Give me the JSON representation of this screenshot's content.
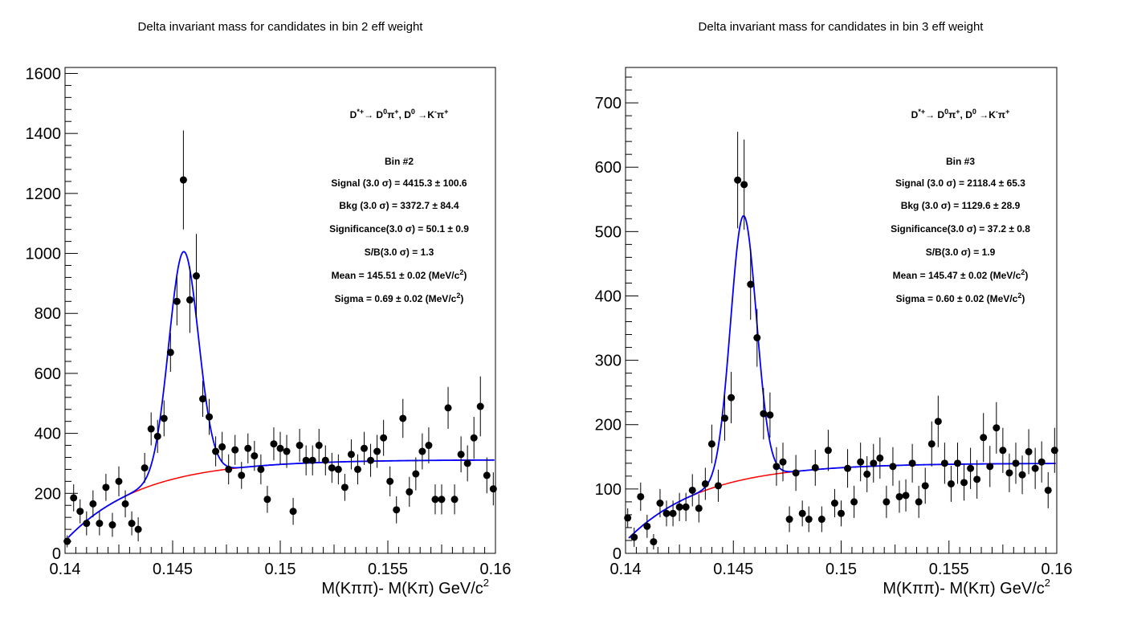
{
  "chart_data": [
    {
      "type": "scatter",
      "title": "Delta invariant mass for candidates in bin 2 eff weight",
      "xlabel": "M(Kππ)- M(Kπ) GeV/c",
      "xlabel_sup": "2",
      "xlim": [
        0.14,
        0.16
      ],
      "ylim": [
        0,
        1620
      ],
      "xticks": [
        "0.14",
        "0.145",
        "0.15",
        "0.155",
        "0.16"
      ],
      "xtick_values": [
        0.14,
        0.145,
        0.15,
        0.155,
        0.16
      ],
      "yticks": [
        "0",
        "200",
        "400",
        "600",
        "800",
        "1000",
        "1200",
        "1400",
        "1600"
      ],
      "ytick_values": [
        0,
        200,
        400,
        600,
        800,
        1000,
        1200,
        1400,
        1600
      ],
      "decay": {
        "text": "D",
        "sup1": "*+",
        "arrow": "→ D",
        "sup2": "0",
        "pi": "π",
        "sup3": "+",
        "comma": ", D",
        "sup4": "0",
        "arrow2": " →K",
        "sup5": "-",
        "pi2": "π",
        "sup6": "+"
      },
      "stats": [
        {
          "text": "Bin #2"
        },
        {
          "text": "Signal (3.0  σ) =  4415.3 ± 100.6"
        },
        {
          "text": "Bkg (3.0  σ) =  3372.7 ± 84.4"
        },
        {
          "text": "Significance(3.0  σ) =  50.1 ± 0.9"
        },
        {
          "text": "S/B(3.0  σ) =  1.3"
        },
        {
          "text": "Mean = 145.51 ± 0.02 (MeV/c",
          "sup": "2",
          "tail": ")"
        },
        {
          "text": "Sigma = 0.69 ± 0.02 (MeV/c",
          "sup": "2",
          "tail": ")"
        }
      ],
      "points": [
        [
          0.1401,
          40,
          20
        ],
        [
          0.1404,
          185,
          45
        ],
        [
          0.1407,
          140,
          40
        ],
        [
          0.141,
          100,
          40
        ],
        [
          0.1413,
          165,
          45
        ],
        [
          0.1416,
          100,
          40
        ],
        [
          0.1419,
          220,
          45
        ],
        [
          0.1422,
          95,
          40
        ],
        [
          0.1425,
          240,
          50
        ],
        [
          0.1428,
          165,
          45
        ],
        [
          0.1431,
          100,
          40
        ],
        [
          0.1434,
          80,
          40
        ],
        [
          0.1437,
          285,
          50
        ],
        [
          0.144,
          415,
          55
        ],
        [
          0.1443,
          390,
          55
        ],
        [
          0.1446,
          450,
          60
        ],
        [
          0.1449,
          670,
          65
        ],
        [
          0.1452,
          840,
          80
        ],
        [
          0.1455,
          1245,
          165
        ],
        [
          0.1458,
          845,
          110
        ],
        [
          0.1461,
          925,
          140
        ],
        [
          0.1464,
          515,
          60
        ],
        [
          0.1467,
          455,
          60
        ],
        [
          0.147,
          340,
          50
        ],
        [
          0.1473,
          355,
          50
        ],
        [
          0.1476,
          280,
          50
        ],
        [
          0.1479,
          345,
          50
        ],
        [
          0.1482,
          260,
          45
        ],
        [
          0.1485,
          350,
          50
        ],
        [
          0.1488,
          325,
          50
        ],
        [
          0.1491,
          280,
          50
        ],
        [
          0.1494,
          180,
          45
        ],
        [
          0.1497,
          365,
          55
        ],
        [
          0.15,
          350,
          55
        ],
        [
          0.1503,
          340,
          55
        ],
        [
          0.1506,
          140,
          45
        ],
        [
          0.1509,
          360,
          55
        ],
        [
          0.1512,
          310,
          50
        ],
        [
          0.1515,
          310,
          50
        ],
        [
          0.1518,
          360,
          55
        ],
        [
          0.1521,
          310,
          50
        ],
        [
          0.1524,
          285,
          50
        ],
        [
          0.1527,
          280,
          50
        ],
        [
          0.153,
          220,
          45
        ],
        [
          0.1533,
          330,
          50
        ],
        [
          0.1536,
          280,
          50
        ],
        [
          0.1539,
          350,
          55
        ],
        [
          0.1542,
          310,
          55
        ],
        [
          0.1545,
          340,
          55
        ],
        [
          0.1548,
          385,
          60
        ],
        [
          0.1551,
          240,
          50
        ],
        [
          0.1554,
          145,
          45
        ],
        [
          0.1557,
          450,
          65
        ],
        [
          0.156,
          205,
          50
        ],
        [
          0.1563,
          265,
          55
        ],
        [
          0.1566,
          340,
          60
        ],
        [
          0.1569,
          360,
          60
        ],
        [
          0.1572,
          180,
          50
        ],
        [
          0.1575,
          180,
          50
        ],
        [
          0.1578,
          485,
          70
        ],
        [
          0.1581,
          180,
          50
        ],
        [
          0.1584,
          330,
          60
        ],
        [
          0.1587,
          300,
          60
        ],
        [
          0.159,
          385,
          70
        ],
        [
          0.1593,
          490,
          100
        ],
        [
          0.1596,
          260,
          60
        ],
        [
          0.1599,
          215,
          55
        ]
      ],
      "fit": {
        "A": 750,
        "mean": 0.14551,
        "sigma": 0.00069,
        "bkg_amp": 312,
        "bkg_m0": 0.1395,
        "bkg_scale": 0.0035,
        "bkg_pow": 1.0
      },
      "signal_color": "#0000ff",
      "background_color": "#ff0000"
    },
    {
      "type": "scatter",
      "title": "Delta invariant mass for candidates in bin 3 eff weight",
      "xlabel": "M(Kππ)- M(Kπ) GeV/c",
      "xlabel_sup": "2",
      "xlim": [
        0.14,
        0.16
      ],
      "ylim": [
        0,
        755
      ],
      "xticks": [
        "0.14",
        "0.145",
        "0.15",
        "0.155",
        "0.16"
      ],
      "xtick_values": [
        0.14,
        0.145,
        0.15,
        0.155,
        0.16
      ],
      "yticks": [
        "0",
        "100",
        "200",
        "300",
        "400",
        "500",
        "600",
        "700"
      ],
      "ytick_values": [
        0,
        100,
        200,
        300,
        400,
        500,
        600,
        700
      ],
      "decay": {
        "text": "D",
        "sup1": "*+",
        "arrow": "→ D",
        "sup2": "0",
        "pi": "π",
        "sup3": "+",
        "comma": ", D",
        "sup4": "0",
        "arrow2": " →K",
        "sup5": "-",
        "pi2": "π",
        "sup6": "+"
      },
      "stats": [
        {
          "text": "Bin #3"
        },
        {
          "text": "Signal (3.0  σ) =  2118.4 ± 65.3"
        },
        {
          "text": "Bkg (3.0  σ) =  1129.6 ± 28.9"
        },
        {
          "text": "Significance(3.0  σ) =  37.2 ± 0.8"
        },
        {
          "text": "S/B(3.0  σ) =  1.9"
        },
        {
          "text": "Mean = 145.47 ± 0.02 (MeV/c",
          "sup": "2",
          "tail": ")"
        },
        {
          "text": "Sigma = 0.60 ± 0.02 (MeV/c",
          "sup": "2",
          "tail": ")"
        }
      ],
      "points": [
        [
          0.1401,
          55,
          15
        ],
        [
          0.1404,
          25,
          15
        ],
        [
          0.1407,
          88,
          22
        ],
        [
          0.141,
          42,
          18
        ],
        [
          0.1413,
          18,
          12
        ],
        [
          0.1416,
          78,
          22
        ],
        [
          0.1419,
          62,
          20
        ],
        [
          0.1422,
          62,
          20
        ],
        [
          0.1425,
          72,
          22
        ],
        [
          0.1428,
          72,
          22
        ],
        [
          0.1431,
          98,
          25
        ],
        [
          0.1434,
          70,
          22
        ],
        [
          0.1437,
          108,
          25
        ],
        [
          0.144,
          170,
          30
        ],
        [
          0.1443,
          105,
          25
        ],
        [
          0.1446,
          210,
          35
        ],
        [
          0.1449,
          242,
          40
        ],
        [
          0.1452,
          580,
          75
        ],
        [
          0.1455,
          573,
          70
        ],
        [
          0.1458,
          418,
          55
        ],
        [
          0.1461,
          335,
          45
        ],
        [
          0.1464,
          217,
          40
        ],
        [
          0.1467,
          215,
          35
        ],
        [
          0.147,
          135,
          30
        ],
        [
          0.1473,
          142,
          30
        ],
        [
          0.1476,
          53,
          20
        ],
        [
          0.1479,
          125,
          28
        ],
        [
          0.1482,
          62,
          20
        ],
        [
          0.1485,
          53,
          20
        ],
        [
          0.1488,
          133,
          28
        ],
        [
          0.1491,
          53,
          20
        ],
        [
          0.1494,
          160,
          32
        ],
        [
          0.1497,
          78,
          22
        ],
        [
          0.15,
          62,
          20
        ],
        [
          0.1503,
          132,
          30
        ],
        [
          0.1506,
          80,
          25
        ],
        [
          0.1509,
          142,
          30
        ],
        [
          0.1512,
          123,
          28
        ],
        [
          0.1515,
          140,
          30
        ],
        [
          0.1518,
          148,
          32
        ],
        [
          0.1521,
          80,
          25
        ],
        [
          0.1524,
          135,
          30
        ],
        [
          0.1527,
          88,
          25
        ],
        [
          0.153,
          90,
          25
        ],
        [
          0.1533,
          140,
          30
        ],
        [
          0.1536,
          80,
          25
        ],
        [
          0.1539,
          105,
          28
        ],
        [
          0.1542,
          170,
          35
        ],
        [
          0.1545,
          205,
          40
        ],
        [
          0.1548,
          140,
          32
        ],
        [
          0.1551,
          108,
          28
        ],
        [
          0.1554,
          140,
          32
        ],
        [
          0.1557,
          110,
          28
        ],
        [
          0.156,
          132,
          32
        ],
        [
          0.1563,
          115,
          30
        ],
        [
          0.1566,
          180,
          38
        ],
        [
          0.1569,
          135,
          32
        ],
        [
          0.1572,
          195,
          40
        ],
        [
          0.1575,
          160,
          35
        ],
        [
          0.1578,
          125,
          30
        ],
        [
          0.1581,
          140,
          32
        ],
        [
          0.1584,
          122,
          30
        ],
        [
          0.1587,
          158,
          35
        ],
        [
          0.159,
          132,
          32
        ],
        [
          0.1593,
          142,
          32
        ],
        [
          0.1596,
          98,
          28
        ],
        [
          0.1599,
          160,
          35
        ]
      ],
      "fit": {
        "A": 410,
        "mean": 0.14547,
        "sigma": 0.0006,
        "bkg_amp": 140,
        "bkg_m0": 0.1395,
        "bkg_scale": 0.0035,
        "bkg_pow": 1.0
      },
      "signal_color": "#0000ff",
      "background_color": "#ff0000"
    }
  ]
}
